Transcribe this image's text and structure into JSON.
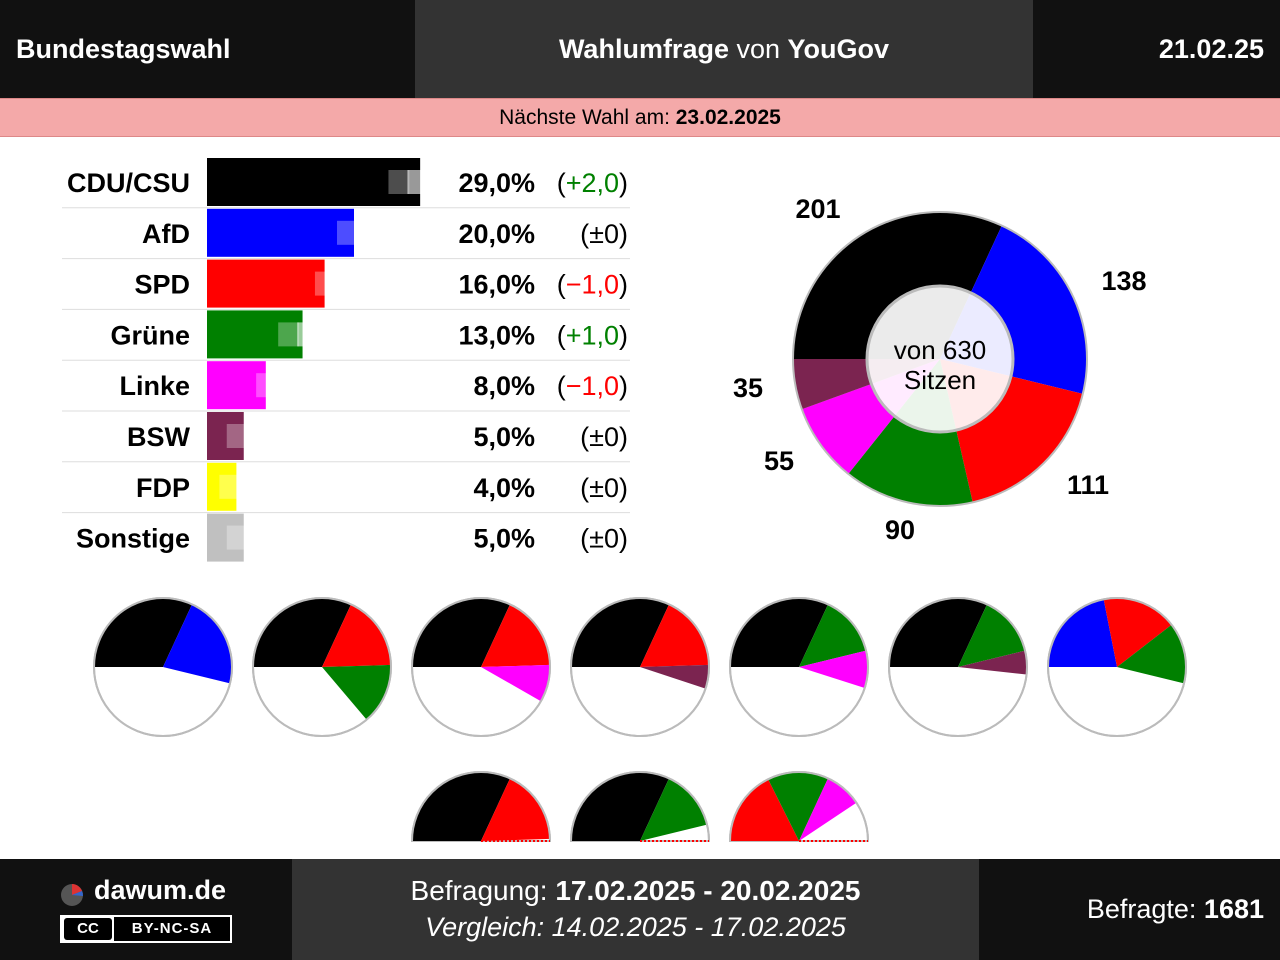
{
  "header": {
    "left": "Bundestagswahl",
    "title_bold1": "Wahlumfrage",
    "title_mid": " von ",
    "title_bold2": "YouGov",
    "date": "21.02.25"
  },
  "next_election": {
    "label": "Nächste Wahl am: ",
    "date": "23.02.2025"
  },
  "chart_data": [
    {
      "type": "bar",
      "categories": [
        "CDU/CSU",
        "AfD",
        "SPD",
        "Grüne",
        "Linke",
        "BSW",
        "FDP",
        "Sonstige"
      ],
      "values": [
        29.0,
        20.0,
        16.0,
        13.0,
        8.0,
        5.0,
        4.0,
        5.0
      ],
      "previous_values": [
        27.0,
        20.0,
        17.0,
        12.0,
        9.0,
        5.0,
        4.0,
        5.0
      ],
      "value_labels": [
        "29,0%",
        "20,0%",
        "16,0%",
        "13,0%",
        "8,0%",
        "5,0%",
        "4,0%",
        "5,0%"
      ],
      "change_labels": [
        "(+2,0)",
        "(±0)",
        "(−1,0)",
        "(+1,0)",
        "(−1,0)",
        "(±0)",
        "(±0)",
        "(±0)"
      ],
      "change_direction": [
        "up",
        "none",
        "down",
        "up",
        "down",
        "none",
        "none",
        "none"
      ],
      "colors": [
        "#000000",
        "#0000ff",
        "#ff0000",
        "#008000",
        "#ff00ff",
        "#7b2450",
        "#ffff00",
        "#c0c0c0"
      ]
    },
    {
      "type": "pie",
      "subtype": "seat-donut",
      "center_label_line1": "von 630",
      "center_label_line2": "Sitzen",
      "total": 630,
      "slices": [
        {
          "party": "CDU/CSU",
          "seats": 201,
          "color": "#000000"
        },
        {
          "party": "AfD",
          "seats": 138,
          "color": "#0000ff"
        },
        {
          "party": "SPD",
          "seats": 111,
          "color": "#ff0000"
        },
        {
          "party": "Grüne",
          "seats": 90,
          "color": "#008000"
        },
        {
          "party": "Linke",
          "seats": 55,
          "color": "#ff00ff"
        },
        {
          "party": "BSW",
          "seats": 35,
          "color": "#7b2450"
        }
      ]
    },
    {
      "type": "pie",
      "subtype": "coalition-mini-pies",
      "coalitions": [
        {
          "parties": [
            "CDU/CSU",
            "AfD"
          ],
          "seats": [
            201,
            138
          ]
        },
        {
          "parties": [
            "CDU/CSU",
            "SPD",
            "Grüne"
          ],
          "seats": [
            201,
            111,
            90
          ]
        },
        {
          "parties": [
            "CDU/CSU",
            "SPD",
            "Linke"
          ],
          "seats": [
            201,
            111,
            55
          ]
        },
        {
          "parties": [
            "CDU/CSU",
            "SPD",
            "BSW"
          ],
          "seats": [
            201,
            111,
            35
          ]
        },
        {
          "parties": [
            "CDU/CSU",
            "Grüne",
            "Linke"
          ],
          "seats": [
            201,
            90,
            55
          ]
        },
        {
          "parties": [
            "CDU/CSU",
            "Grüne",
            "BSW"
          ],
          "seats": [
            201,
            90,
            35
          ]
        },
        {
          "parties": [
            "AfD",
            "SPD",
            "Grüne"
          ],
          "seats": [
            138,
            111,
            90
          ]
        }
      ]
    },
    {
      "type": "pie",
      "subtype": "coalition-half-pies",
      "coalitions": [
        {
          "parties": [
            "CDU/CSU",
            "SPD"
          ],
          "seats": [
            201,
            111
          ]
        },
        {
          "parties": [
            "CDU/CSU",
            "Grüne"
          ],
          "seats": [
            201,
            90
          ]
        },
        {
          "parties": [
            "SPD",
            "Grüne",
            "Linke"
          ],
          "seats": [
            111,
            90,
            55
          ]
        }
      ]
    }
  ],
  "footer": {
    "brand": "dawum.de",
    "license": "BY-NC-SA",
    "license_cc": "CC",
    "survey_label": "Befragung: ",
    "survey_period": "17.02.2025 - 20.02.2025",
    "compare_text": "Vergleich: 14.02.2025 - 17.02.2025",
    "respondents_label": "Befragte: ",
    "respondents": "1681"
  },
  "colors": {
    "header_bg": "#111111",
    "header_mid_bg": "#333333",
    "next_bar_bg": "#f4a9a9",
    "up": "#008000",
    "down": "#ff0000"
  }
}
